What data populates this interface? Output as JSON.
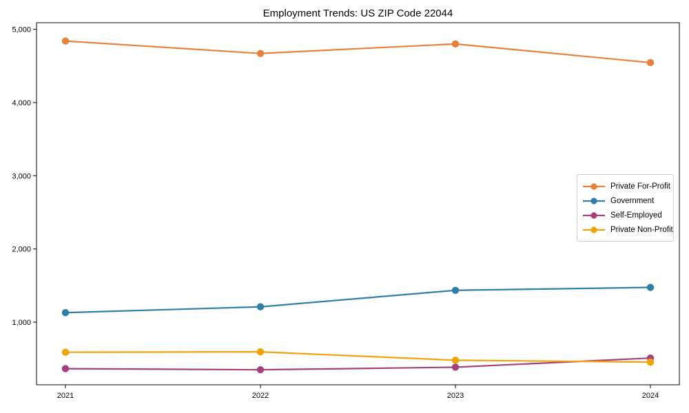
{
  "chart_data": {
    "type": "line",
    "title": "Employment Trends: US ZIP Code 22044",
    "categories": [
      "2021",
      "2022",
      "2023",
      "2024"
    ],
    "series": [
      {
        "name": "Private For-Profit",
        "color": "#E8803D",
        "values": [
          4840,
          4670,
          4800,
          4545
        ]
      },
      {
        "name": "Government",
        "color": "#2D7FA7",
        "values": [
          1130,
          1210,
          1435,
          1475
        ]
      },
      {
        "name": "Self-Employed",
        "color": "#A6407C",
        "values": [
          365,
          350,
          385,
          510
        ]
      },
      {
        "name": "Private Non-Profit",
        "color": "#F1A208",
        "values": [
          590,
          595,
          480,
          455
        ]
      }
    ],
    "xlabel": "",
    "ylabel": "",
    "y_ticks": [
      1000,
      2000,
      3000,
      4000,
      5000
    ],
    "y_tick_labels": [
      "1,000",
      "2,000",
      "3,000",
      "4,000",
      "5,000"
    ],
    "ylim": [
      145,
      5090
    ],
    "grid": false,
    "legend_position": "center-right",
    "marker": "circle",
    "axis_color": "#000000"
  }
}
